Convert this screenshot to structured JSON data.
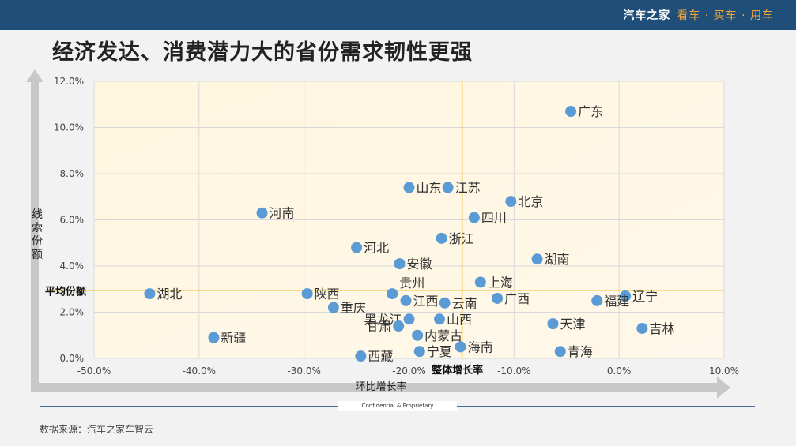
{
  "header": {
    "brand": "汽车之家",
    "tagline": "看车 · 买车 · 用车"
  },
  "page": {
    "title": "经济发达、消费潜力大的省份需求韧性更强"
  },
  "chart_data": {
    "type": "scatter",
    "xlabel": "环比增长率",
    "ylabel": "线索份额",
    "xlim": [
      -0.5,
      0.1
    ],
    "ylim": [
      0,
      0.12
    ],
    "x_ticks": [
      -0.5,
      -0.4,
      -0.3,
      -0.2,
      -0.1,
      0.0,
      0.1
    ],
    "x_tick_labels": [
      "-50.0%",
      "-40.0%",
      "-30.0%",
      "-20.0%",
      "-10.0%",
      "0.0%",
      "10.0%"
    ],
    "y_ticks": [
      0,
      0.02,
      0.04,
      0.06,
      0.08,
      0.1,
      0.12
    ],
    "y_tick_labels": [
      "0.0%",
      "2.0%",
      "4.0%",
      "6.0%",
      "8.0%",
      "10.0%",
      "12.0%"
    ],
    "grid": true,
    "point_color": "#5b9bd5",
    "ref_line_color": "#f2c22b",
    "ref_lines": {
      "x": -0.1495,
      "x_label": "整体增长率",
      "y": 0.0295,
      "y_label": "平均份额"
    },
    "points": [
      {
        "name": "广东",
        "x": -0.046,
        "y": 0.107
      },
      {
        "name": "山东",
        "x": -0.2,
        "y": 0.074
      },
      {
        "name": "江苏",
        "x": -0.163,
        "y": 0.074
      },
      {
        "name": "北京",
        "x": -0.103,
        "y": 0.068
      },
      {
        "name": "河南",
        "x": -0.34,
        "y": 0.063
      },
      {
        "name": "四川",
        "x": -0.138,
        "y": 0.061
      },
      {
        "name": "浙江",
        "x": -0.169,
        "y": 0.052
      },
      {
        "name": "河北",
        "x": -0.25,
        "y": 0.048
      },
      {
        "name": "湖南",
        "x": -0.078,
        "y": 0.043
      },
      {
        "name": "安徽",
        "x": -0.209,
        "y": 0.041
      },
      {
        "name": "上海",
        "x": -0.132,
        "y": 0.033
      },
      {
        "name": "贵州",
        "x": -0.216,
        "y": 0.028,
        "label_pos": "above-right"
      },
      {
        "name": "湖北",
        "x": -0.447,
        "y": 0.028
      },
      {
        "name": "陕西",
        "x": -0.297,
        "y": 0.028
      },
      {
        "name": "辽宁",
        "x": 0.006,
        "y": 0.027
      },
      {
        "name": "广西",
        "x": -0.116,
        "y": 0.026
      },
      {
        "name": "福建",
        "x": -0.021,
        "y": 0.025
      },
      {
        "name": "江西",
        "x": -0.203,
        "y": 0.025
      },
      {
        "name": "云南",
        "x": -0.166,
        "y": 0.024
      },
      {
        "name": "重庆",
        "x": -0.272,
        "y": 0.022
      },
      {
        "name": "黑龙江",
        "x": -0.2,
        "y": 0.017,
        "label_pos": "left"
      },
      {
        "name": "山西",
        "x": -0.171,
        "y": 0.017
      },
      {
        "name": "天津",
        "x": -0.063,
        "y": 0.015
      },
      {
        "name": "甘肃",
        "x": -0.21,
        "y": 0.014,
        "label_pos": "left"
      },
      {
        "name": "吉林",
        "x": 0.022,
        "y": 0.013
      },
      {
        "name": "内蒙古",
        "x": -0.192,
        "y": 0.01
      },
      {
        "name": "新疆",
        "x": -0.386,
        "y": 0.009
      },
      {
        "name": "海南",
        "x": -0.151,
        "y": 0.005
      },
      {
        "name": "宁夏",
        "x": -0.19,
        "y": 0.003
      },
      {
        "name": "青海",
        "x": -0.056,
        "y": 0.003
      },
      {
        "name": "西藏",
        "x": -0.246,
        "y": 0.001
      }
    ]
  },
  "footer": {
    "confidential": "Confidential & Proprietary",
    "source": "数据来源：汽车之家车智云"
  }
}
